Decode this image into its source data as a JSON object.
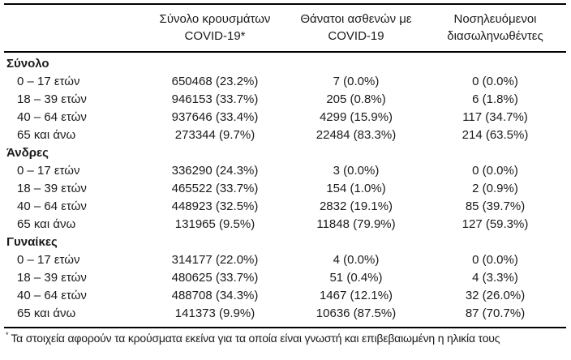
{
  "header": {
    "cases": {
      "line1": "Σύνολο κρουσμάτων",
      "line2": "COVID-19*"
    },
    "deaths": {
      "line1": "Θάνατοι ασθενών με",
      "line2": "COVID-19"
    },
    "intubated": {
      "line1": "Νοσηλευόμενοι",
      "line2": "διασωληνωθέντες"
    }
  },
  "sections": [
    {
      "label": "Σύνολο",
      "rows": [
        {
          "age": "0 – 17 ετών",
          "cases": "650468 (23.2%)",
          "deaths": "7 (0.0%)",
          "intubated": "0 (0.0%)"
        },
        {
          "age": "18 – 39 ετών",
          "cases": "946153 (33.7%)",
          "deaths": "205 (0.8%)",
          "intubated": "6 (1.8%)"
        },
        {
          "age": "40 – 64 ετών",
          "cases": "937646 (33.4%)",
          "deaths": "4299 (15.9%)",
          "intubated": "117 (34.7%)"
        },
        {
          "age": "65 και άνω",
          "cases": "273344 (9.7%)",
          "deaths": "22484 (83.3%)",
          "intubated": "214 (63.5%)"
        }
      ]
    },
    {
      "label": "Άνδρες",
      "rows": [
        {
          "age": "0 – 17 ετών",
          "cases": "336290 (24.3%)",
          "deaths": "3 (0.0%)",
          "intubated": "0 (0.0%)"
        },
        {
          "age": "18 – 39 ετών",
          "cases": "465522 (33.7%)",
          "deaths": "154 (1.0%)",
          "intubated": "2 (0.9%)"
        },
        {
          "age": "40 – 64 ετών",
          "cases": "448923 (32.5%)",
          "deaths": "2832 (19.1%)",
          "intubated": "85 (39.7%)"
        },
        {
          "age": "65 και άνω",
          "cases": "131965 (9.5%)",
          "deaths": "11848 (79.9%)",
          "intubated": "127 (59.3%)"
        }
      ]
    },
    {
      "label": "Γυναίκες",
      "rows": [
        {
          "age": "0 – 17 ετών",
          "cases": "314177 (22.0%)",
          "deaths": "4 (0.0%)",
          "intubated": "0 (0.0%)"
        },
        {
          "age": "18 – 39 ετών",
          "cases": "480625 (33.7%)",
          "deaths": "51 (0.4%)",
          "intubated": "4 (3.3%)"
        },
        {
          "age": "40 – 64 ετών",
          "cases": "488708 (34.3%)",
          "deaths": "1467 (12.1%)",
          "intubated": "32 (26.0%)"
        },
        {
          "age": "65 και άνω",
          "cases": "141373 (9.9%)",
          "deaths": "10636 (87.5%)",
          "intubated": "87 (70.7%)"
        }
      ]
    }
  ],
  "footnote": {
    "marker": "*",
    "text": "Τα στοιχεία αφορούν τα κρούσματα εκείνα για τα οποία είναι γνωστή και επιβεβαιωμένη η ηλικία τους"
  },
  "colors": {
    "text": "#1a1a1a",
    "rule": "#000000",
    "background": "#ffffff"
  }
}
